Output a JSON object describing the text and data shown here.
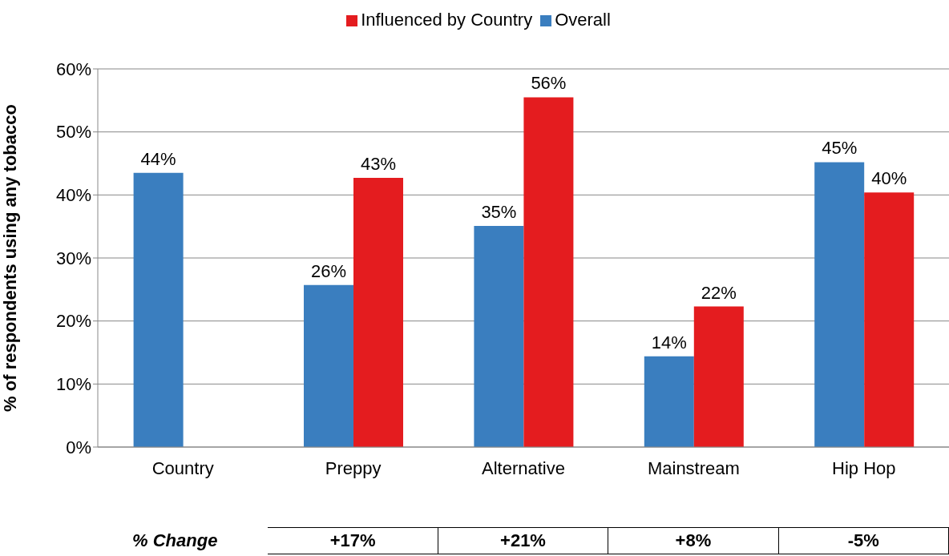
{
  "chart_data": {
    "type": "bar",
    "ylabel": "% of respondents using any tobacco",
    "categories": [
      "Country",
      "Preppy",
      "Alternative",
      "Mainstream",
      "Hip Hop"
    ],
    "series": [
      {
        "name": "Overall",
        "color": "#3a7ebf",
        "values": [
          43.5,
          25.7,
          35.1,
          14.4,
          45.2
        ],
        "value_labels": [
          "44%",
          "26%",
          "35%",
          "14%",
          "45%"
        ]
      },
      {
        "name": "Influenced by Country",
        "color": "#e41c1f",
        "values": [
          null,
          42.7,
          55.5,
          22.3,
          40.4
        ],
        "value_labels": [
          null,
          "43%",
          "56%",
          "22%",
          "40%"
        ]
      }
    ],
    "ylim": [
      0,
      60
    ],
    "yticks": [
      {
        "value": 0,
        "label": "0%"
      },
      {
        "value": 10,
        "label": "10%"
      },
      {
        "value": 20,
        "label": "20%"
      },
      {
        "value": 30,
        "label": "30%"
      },
      {
        "value": 40,
        "label": "40%"
      },
      {
        "value": 50,
        "label": "50%"
      },
      {
        "value": 60,
        "label": "60%"
      }
    ],
    "grid": "y",
    "legend": "top",
    "annotations": [
      "% Change",
      "+17%",
      "+21%",
      "+8%",
      "-5%"
    ]
  }
}
